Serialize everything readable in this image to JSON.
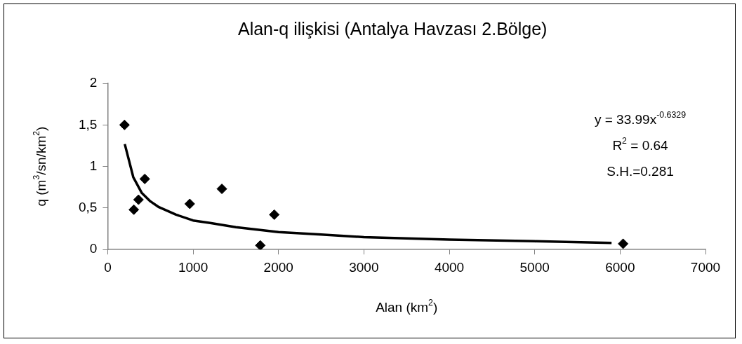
{
  "chart_data": {
    "type": "scatter",
    "title": "Alan-q ilişkisi (Antalya Havzası 2.Bölge)",
    "xlabel": "Alan (km$^{2}$)",
    "ylabel": "q (m$^{3}$/sn/km$^{2}$)",
    "annotations": [
      "y = 33.99x$^{-0.6329}$",
      "R$^{2}$ = 0.64",
      "S.H.=0.281"
    ],
    "xlim": [
      0,
      7000
    ],
    "xticks": [
      0,
      1000,
      2000,
      3000,
      4000,
      5000,
      6000,
      7000
    ],
    "ylim": [
      0,
      2
    ],
    "yticks": [
      0,
      {
        "value": 0.5,
        "label": "0,5"
      },
      1,
      {
        "value": 1.5,
        "label": "1,5"
      },
      2
    ],
    "grid": false,
    "legend": false,
    "marker": "diamond",
    "series": [
      {
        "color": "#000000",
        "x": [
          197,
          306,
          361,
          434,
          961,
          1337,
          1787,
          1951,
          6035
        ],
        "values": [
          1.5,
          0.48,
          0.6,
          0.85,
          0.55,
          0.73,
          0.05,
          0.42,
          0.07
        ]
      },
      {
        "type": "line",
        "color": "#000000",
        "marker": "none",
        "x": [
          200,
          300,
          400,
          500,
          600,
          800,
          1000,
          1200,
          1500,
          2000,
          2500,
          3000,
          4000,
          5000,
          5900
        ],
        "values": [
          1.27,
          0.87,
          0.68,
          0.58,
          0.51,
          0.42,
          0.35,
          0.32,
          0.27,
          0.21,
          0.18,
          0.15,
          0.12,
          0.1,
          0.08
        ]
      }
    ]
  }
}
